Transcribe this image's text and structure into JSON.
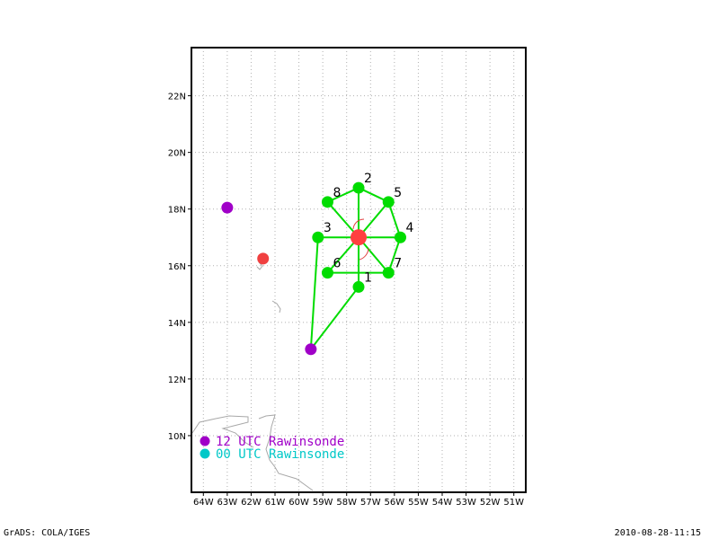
{
  "map": {
    "lon_labels": [
      "64W",
      "63W",
      "62W",
      "61W",
      "60W",
      "59W",
      "58W",
      "57W",
      "56W",
      "55W",
      "54W",
      "53W",
      "52W",
      "51W"
    ],
    "lat_labels": [
      "10N",
      "12N",
      "14N",
      "16N",
      "18N",
      "20N",
      "22N"
    ],
    "lon_range": [
      -64.5,
      -50.5
    ],
    "lat_range": [
      8.0,
      23.7
    ],
    "grid": "dotted"
  },
  "center": {
    "lon": -57.5,
    "lat": 17.0,
    "color": "#ff4040"
  },
  "points": [
    {
      "label": "1",
      "lon": -57.5,
      "lat": 15.25
    },
    {
      "label": "2",
      "lon": -57.5,
      "lat": 18.75
    },
    {
      "label": "3",
      "lon": -59.2,
      "lat": 17.0
    },
    {
      "label": "4",
      "lon": -55.75,
      "lat": 17.0
    },
    {
      "label": "5",
      "lon": -56.25,
      "lat": 18.25
    },
    {
      "label": "6",
      "lon": -58.8,
      "lat": 15.75
    },
    {
      "label": "7",
      "lon": -56.25,
      "lat": 15.75
    },
    {
      "label": "8",
      "lon": -58.8,
      "lat": 18.25
    }
  ],
  "point_color": "#00dc00",
  "rawinsondes_12utc": [
    {
      "lon": -63.0,
      "lat": 18.05
    },
    {
      "lon": -59.5,
      "lat": 13.05
    }
  ],
  "rawinsondes_00utc": [],
  "other_site": {
    "lon": -61.5,
    "lat": 16.25,
    "color": "#f04040"
  },
  "legend": [
    {
      "label": "12 UTC Rawinsonde",
      "color": "#a000c8"
    },
    {
      "label": "00 UTC Rawinsonde",
      "color": "#00c8c8"
    }
  ],
  "footer": {
    "left": "GrADS: COLA/IGES",
    "right": "2010-08-28-11:15"
  }
}
